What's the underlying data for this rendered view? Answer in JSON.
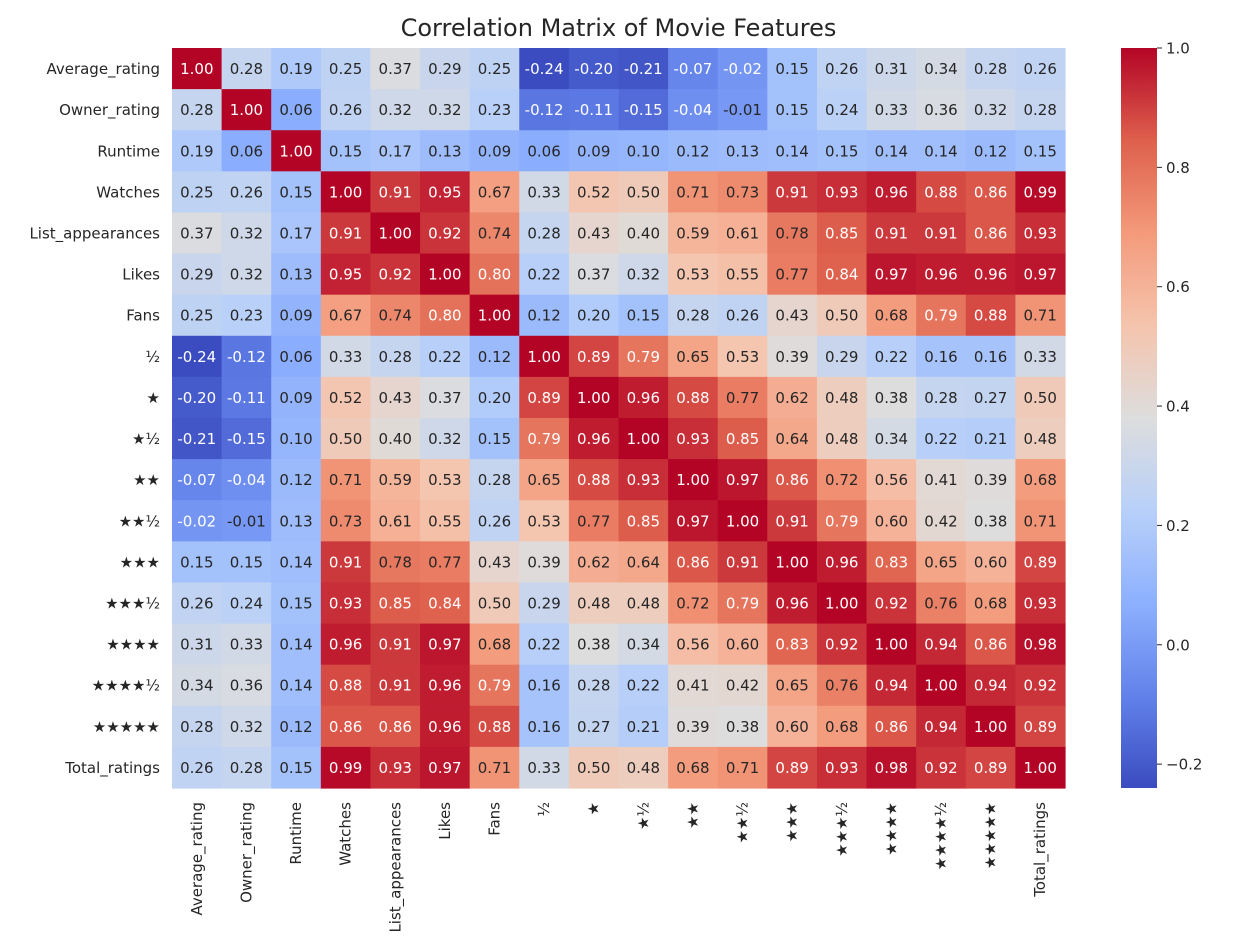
{
  "chart_data": {
    "type": "heatmap",
    "title": "Correlation Matrix of Movie Features",
    "labels": [
      "Average_rating",
      "Owner_rating",
      "Runtime",
      "Watches",
      "List_appearances",
      "Likes",
      "Fans",
      "½",
      "★",
      "★½",
      "★★",
      "★★½",
      "★★★",
      "★★★½",
      "★★★★",
      "★★★★½",
      "★★★★★",
      "Total_ratings"
    ],
    "values": [
      [
        1.0,
        0.28,
        0.19,
        0.25,
        0.37,
        0.29,
        0.25,
        -0.24,
        -0.2,
        -0.21,
        -0.07,
        -0.02,
        0.15,
        0.26,
        0.31,
        0.34,
        0.28,
        0.26
      ],
      [
        0.28,
        1.0,
        0.06,
        0.26,
        0.32,
        0.32,
        0.23,
        -0.12,
        -0.11,
        -0.15,
        -0.04,
        -0.01,
        0.15,
        0.24,
        0.33,
        0.36,
        0.32,
        0.28
      ],
      [
        0.19,
        0.06,
        1.0,
        0.15,
        0.17,
        0.13,
        0.09,
        0.06,
        0.09,
        0.1,
        0.12,
        0.13,
        0.14,
        0.15,
        0.14,
        0.14,
        0.12,
        0.15
      ],
      [
        0.25,
        0.26,
        0.15,
        1.0,
        0.91,
        0.95,
        0.67,
        0.33,
        0.52,
        0.5,
        0.71,
        0.73,
        0.91,
        0.93,
        0.96,
        0.88,
        0.86,
        0.99
      ],
      [
        0.37,
        0.32,
        0.17,
        0.91,
        1.0,
        0.92,
        0.74,
        0.28,
        0.43,
        0.4,
        0.59,
        0.61,
        0.78,
        0.85,
        0.91,
        0.91,
        0.86,
        0.93
      ],
      [
        0.29,
        0.32,
        0.13,
        0.95,
        0.92,
        1.0,
        0.8,
        0.22,
        0.37,
        0.32,
        0.53,
        0.55,
        0.77,
        0.84,
        0.97,
        0.96,
        0.96,
        0.97
      ],
      [
        0.25,
        0.23,
        0.09,
        0.67,
        0.74,
        0.8,
        1.0,
        0.12,
        0.2,
        0.15,
        0.28,
        0.26,
        0.43,
        0.5,
        0.68,
        0.79,
        0.88,
        0.71
      ],
      [
        -0.24,
        -0.12,
        0.06,
        0.33,
        0.28,
        0.22,
        0.12,
        1.0,
        0.89,
        0.79,
        0.65,
        0.53,
        0.39,
        0.29,
        0.22,
        0.16,
        0.16,
        0.33
      ],
      [
        -0.2,
        -0.11,
        0.09,
        0.52,
        0.43,
        0.37,
        0.2,
        0.89,
        1.0,
        0.96,
        0.88,
        0.77,
        0.62,
        0.48,
        0.38,
        0.28,
        0.27,
        0.5
      ],
      [
        -0.21,
        -0.15,
        0.1,
        0.5,
        0.4,
        0.32,
        0.15,
        0.79,
        0.96,
        1.0,
        0.93,
        0.85,
        0.64,
        0.48,
        0.34,
        0.22,
        0.21,
        0.48
      ],
      [
        -0.07,
        -0.04,
        0.12,
        0.71,
        0.59,
        0.53,
        0.28,
        0.65,
        0.88,
        0.93,
        1.0,
        0.97,
        0.86,
        0.72,
        0.56,
        0.41,
        0.39,
        0.68
      ],
      [
        -0.02,
        -0.01,
        0.13,
        0.73,
        0.61,
        0.55,
        0.26,
        0.53,
        0.77,
        0.85,
        0.97,
        1.0,
        0.91,
        0.79,
        0.6,
        0.42,
        0.38,
        0.71
      ],
      [
        0.15,
        0.15,
        0.14,
        0.91,
        0.78,
        0.77,
        0.43,
        0.39,
        0.62,
        0.64,
        0.86,
        0.91,
        1.0,
        0.96,
        0.83,
        0.65,
        0.6,
        0.89
      ],
      [
        0.26,
        0.24,
        0.15,
        0.93,
        0.85,
        0.84,
        0.5,
        0.29,
        0.48,
        0.48,
        0.72,
        0.79,
        0.96,
        1.0,
        0.92,
        0.76,
        0.68,
        0.93
      ],
      [
        0.31,
        0.33,
        0.14,
        0.96,
        0.91,
        0.97,
        0.68,
        0.22,
        0.38,
        0.34,
        0.56,
        0.6,
        0.83,
        0.92,
        1.0,
        0.94,
        0.86,
        0.98
      ],
      [
        0.34,
        0.36,
        0.14,
        0.88,
        0.91,
        0.96,
        0.79,
        0.16,
        0.28,
        0.22,
        0.41,
        0.42,
        0.65,
        0.76,
        0.94,
        1.0,
        0.94,
        0.92
      ],
      [
        0.28,
        0.32,
        0.12,
        0.86,
        0.86,
        0.96,
        0.88,
        0.16,
        0.27,
        0.21,
        0.39,
        0.38,
        0.6,
        0.68,
        0.86,
        0.94,
        1.0,
        0.89
      ],
      [
        0.26,
        0.28,
        0.15,
        0.99,
        0.93,
        0.97,
        0.71,
        0.33,
        0.5,
        0.48,
        0.68,
        0.71,
        0.89,
        0.93,
        0.98,
        0.92,
        0.89,
        1.0
      ]
    ],
    "colormap": "coolwarm",
    "vmin": -0.24,
    "vmax": 1.0,
    "colorbar_ticks": [
      1.0,
      0.8,
      0.6,
      0.4,
      0.2,
      0.0,
      -0.2
    ],
    "colorbar_tick_labels": [
      "1.0",
      "0.8",
      "0.6",
      "0.4",
      "0.2",
      "0.0",
      "−0.2"
    ],
    "annotate": true,
    "grid": false,
    "legend": "colorbar-right"
  }
}
